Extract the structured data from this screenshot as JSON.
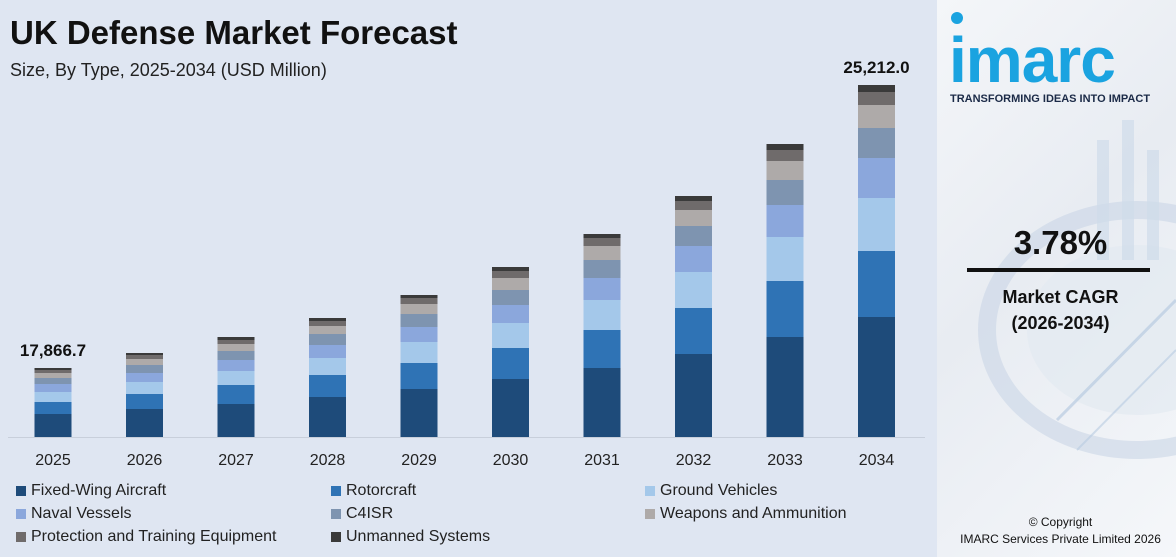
{
  "title": "UK Defense Market Forecast",
  "subtitle": "Size, By Type, 2025-2034 (USD Million)",
  "chart_data": {
    "type": "bar",
    "stacked": true,
    "categories": [
      "2025",
      "2026",
      "2027",
      "2028",
      "2029",
      "2030",
      "2031",
      "2032",
      "2033",
      "2034"
    ],
    "series": [
      {
        "name": "Fixed-Wing Aircraft",
        "color": "#1e4b7a",
        "values": [
          23,
          28,
          33,
          40,
          48,
          58,
          69,
          83,
          100,
          120
        ]
      },
      {
        "name": "Rotorcraft",
        "color": "#2f73b5",
        "values": [
          12,
          15,
          19,
          22,
          26,
          31,
          38,
          46,
          56,
          66
        ]
      },
      {
        "name": "Ground Vehicles",
        "color": "#a4c8ea",
        "values": [
          10,
          12,
          14,
          17,
          21,
          25,
          30,
          36,
          44,
          53
        ]
      },
      {
        "name": "Naval Vessels",
        "color": "#8ba7dc",
        "values": [
          8,
          9,
          11,
          13,
          15,
          18,
          22,
          26,
          32,
          40
        ]
      },
      {
        "name": "C4ISR",
        "color": "#7e94b0",
        "values": [
          6,
          8,
          9,
          11,
          13,
          15,
          18,
          20,
          25,
          30
        ]
      },
      {
        "name": "Weapons and Ammunition",
        "color": "#aeaaa9",
        "values": [
          5,
          6,
          7,
          8,
          10,
          12,
          14,
          16,
          19,
          23
        ]
      },
      {
        "name": "Protection and Training Equipment",
        "color": "#6f6b6b",
        "values": [
          3,
          4,
          4,
          5,
          6,
          7,
          8,
          9,
          11,
          13
        ]
      },
      {
        "name": "Unmanned Systems",
        "color": "#3a3a3a",
        "values": [
          2,
          2,
          3,
          3,
          3,
          4,
          4,
          5,
          6,
          7
        ]
      }
    ],
    "annotations": [
      {
        "category": "2025",
        "text": "17,866.7"
      },
      {
        "category": "2034",
        "text": "25,212.0"
      }
    ],
    "ylim": [
      0,
      360
    ],
    "xlabel": "",
    "ylabel": ""
  },
  "side": {
    "logo": "imarc",
    "tagline": "TRANSFORMING IDEAS INTO IMPACT",
    "cagr_value": "3.78%",
    "cagr_label_1": "Market CAGR",
    "cagr_label_2": "(2026-2034)",
    "copyright_1": "© Copyright",
    "copyright_2": "IMARC Services Private Limited 2026"
  }
}
